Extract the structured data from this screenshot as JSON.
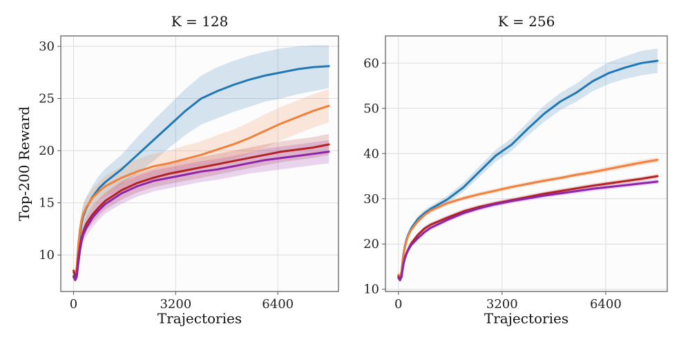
{
  "chart_data": [
    {
      "type": "line",
      "title": "K = 128",
      "xlabel": "Trajectories",
      "ylabel": "Top-200 Reward",
      "xlim": [
        -400,
        8300
      ],
      "ylim": [
        6.5,
        31
      ],
      "xticks": [
        0,
        3200,
        6400
      ],
      "xtick_labels": [
        "0",
        "3200",
        "6400"
      ],
      "yticks": [
        10,
        15,
        20,
        25,
        30
      ],
      "ytick_labels": [
        "10",
        "15",
        "20",
        "25",
        "30"
      ],
      "grid": true,
      "x": [
        0,
        50,
        100,
        150,
        200,
        250,
        300,
        400,
        600,
        800,
        1000,
        1500,
        2000,
        2500,
        3000,
        3500,
        4000,
        4500,
        5000,
        5500,
        6000,
        6500,
        7000,
        7500,
        8000
      ],
      "series": [
        {
          "name": "series-blue",
          "color": "#1f77b4",
          "values": [
            8.0,
            7.7,
            8.2,
            10.5,
            12.0,
            13.0,
            13.7,
            14.5,
            15.6,
            16.4,
            17.0,
            18.2,
            19.6,
            21.0,
            22.4,
            23.8,
            25.0,
            25.7,
            26.3,
            26.8,
            27.2,
            27.5,
            27.8,
            28.0,
            28.1
          ],
          "lower": [
            7.7,
            7.5,
            7.9,
            9.7,
            11.1,
            12.0,
            12.6,
            13.4,
            14.5,
            15.2,
            15.8,
            16.8,
            17.8,
            19.0,
            20.3,
            21.5,
            22.5,
            23.1,
            23.7,
            24.2,
            24.7,
            25.0,
            25.4,
            25.7,
            26.0
          ],
          "upper": [
            8.3,
            8.0,
            8.6,
            11.3,
            12.9,
            14.0,
            14.8,
            15.6,
            16.7,
            17.6,
            18.3,
            19.6,
            21.3,
            22.9,
            24.4,
            25.9,
            27.2,
            28.0,
            28.6,
            29.1,
            29.5,
            29.8,
            30.0,
            30.1,
            30.1
          ]
        },
        {
          "name": "series-orange",
          "color": "#f0803c",
          "values": [
            8.3,
            8.1,
            8.8,
            11.0,
            12.4,
            13.3,
            13.9,
            14.6,
            15.5,
            16.1,
            16.6,
            17.4,
            18.0,
            18.5,
            18.8,
            19.2,
            19.6,
            20.1,
            20.6,
            21.2,
            21.9,
            22.6,
            23.2,
            23.8,
            24.3
          ],
          "lower": [
            8.0,
            7.8,
            8.4,
            10.3,
            11.6,
            12.4,
            13.0,
            13.7,
            14.6,
            15.2,
            15.6,
            16.3,
            16.8,
            17.3,
            17.6,
            17.9,
            18.3,
            18.7,
            19.2,
            19.7,
            20.3,
            21.0,
            21.6,
            22.2,
            22.7
          ],
          "upper": [
            8.6,
            8.4,
            9.2,
            11.7,
            13.2,
            14.2,
            14.8,
            15.5,
            16.4,
            17.0,
            17.6,
            18.5,
            19.2,
            19.7,
            20.0,
            20.5,
            20.9,
            21.5,
            22.0,
            22.7,
            23.5,
            24.2,
            24.8,
            25.4,
            25.9
          ]
        },
        {
          "name": "series-red",
          "color": "#b22222",
          "values": [
            8.5,
            8.0,
            8.2,
            9.8,
            10.8,
            11.6,
            12.2,
            13.0,
            13.9,
            14.6,
            15.2,
            16.2,
            16.9,
            17.4,
            17.8,
            18.1,
            18.4,
            18.7,
            19.0,
            19.3,
            19.6,
            19.9,
            20.1,
            20.3,
            20.6
          ],
          "lower": [
            8.2,
            7.7,
            7.9,
            9.3,
            10.2,
            10.9,
            11.5,
            12.3,
            13.1,
            13.8,
            14.4,
            15.3,
            16.0,
            16.5,
            16.8,
            17.1,
            17.4,
            17.7,
            18.0,
            18.3,
            18.6,
            18.9,
            19.1,
            19.3,
            19.6
          ],
          "upper": [
            8.8,
            8.3,
            8.5,
            10.3,
            11.4,
            12.3,
            12.9,
            13.7,
            14.7,
            15.4,
            16.0,
            17.1,
            17.8,
            18.3,
            18.8,
            19.1,
            19.4,
            19.7,
            20.0,
            20.3,
            20.6,
            20.9,
            21.1,
            21.3,
            21.6
          ]
        },
        {
          "name": "series-purple",
          "color": "#8e24aa",
          "values": [
            7.9,
            7.6,
            7.9,
            9.2,
            10.4,
            11.3,
            11.9,
            12.6,
            13.6,
            14.3,
            14.9,
            15.9,
            16.6,
            17.1,
            17.4,
            17.7,
            18.0,
            18.2,
            18.5,
            18.8,
            19.1,
            19.3,
            19.5,
            19.7,
            19.9
          ],
          "lower": [
            7.6,
            7.4,
            7.6,
            8.7,
            9.8,
            10.6,
            11.2,
            11.8,
            12.7,
            13.4,
            14.0,
            14.9,
            15.6,
            16.1,
            16.4,
            16.7,
            17.0,
            17.2,
            17.5,
            17.8,
            18.0,
            18.2,
            18.4,
            18.6,
            18.8
          ],
          "upper": [
            8.2,
            7.8,
            8.2,
            9.7,
            11.0,
            12.0,
            12.6,
            13.4,
            14.5,
            15.2,
            15.8,
            16.9,
            17.6,
            18.1,
            18.4,
            18.7,
            19.0,
            19.2,
            19.5,
            19.8,
            20.2,
            20.4,
            20.6,
            20.8,
            21.0
          ]
        }
      ]
    },
    {
      "type": "line",
      "title": "K = 256",
      "xlabel": "Trajectories",
      "ylabel": "",
      "xlim": [
        -400,
        8300
      ],
      "ylim": [
        9.5,
        66
      ],
      "xticks": [
        0,
        3200,
        6400
      ],
      "xtick_labels": [
        "0",
        "3200",
        "6400"
      ],
      "yticks": [
        10,
        20,
        30,
        40,
        50,
        60
      ],
      "ytick_labels": [
        "10",
        "20",
        "30",
        "40",
        "50",
        "60"
      ],
      "grid": true,
      "x": [
        0,
        50,
        100,
        150,
        200,
        250,
        300,
        400,
        600,
        800,
        1000,
        1500,
        2000,
        2500,
        3000,
        3500,
        4000,
        4500,
        5000,
        5500,
        6000,
        6500,
        7000,
        7500,
        8000
      ],
      "series": [
        {
          "name": "series-blue",
          "color": "#1f77b4",
          "values": [
            13.0,
            12.6,
            14.0,
            17.5,
            19.5,
            21.0,
            22.0,
            23.5,
            25.5,
            26.8,
            27.8,
            29.8,
            32.5,
            36.0,
            39.5,
            42.0,
            45.5,
            48.8,
            51.5,
            53.5,
            56.0,
            57.8,
            59.0,
            60.0,
            60.5
          ],
          "lower": [
            12.6,
            12.2,
            13.6,
            17.0,
            19.0,
            20.4,
            21.4,
            22.9,
            24.8,
            26.1,
            27.1,
            29.0,
            31.5,
            34.8,
            38.2,
            40.6,
            44.0,
            47.0,
            49.6,
            51.5,
            53.8,
            55.4,
            56.5,
            57.3,
            57.8
          ],
          "upper": [
            13.4,
            13.0,
            14.4,
            18.0,
            20.0,
            21.6,
            22.6,
            24.1,
            26.2,
            27.5,
            28.5,
            30.6,
            33.5,
            37.2,
            40.8,
            43.4,
            47.0,
            50.6,
            53.4,
            55.5,
            58.2,
            60.2,
            61.5,
            62.7,
            63.2
          ]
        },
        {
          "name": "series-orange",
          "color": "#f0803c",
          "values": [
            13.2,
            12.4,
            14.0,
            17.2,
            19.2,
            20.7,
            21.8,
            23.2,
            25.0,
            26.4,
            27.4,
            29.0,
            30.1,
            31.0,
            31.8,
            32.6,
            33.3,
            34.0,
            34.6,
            35.3,
            35.9,
            36.6,
            37.3,
            38.0,
            38.6
          ],
          "lower": [
            12.8,
            12.0,
            13.6,
            16.8,
            18.8,
            20.2,
            21.3,
            22.7,
            24.5,
            25.9,
            26.9,
            28.5,
            29.6,
            30.5,
            31.3,
            32.1,
            32.8,
            33.5,
            34.1,
            34.8,
            35.4,
            36.0,
            36.7,
            37.4,
            38.0
          ],
          "upper": [
            13.6,
            12.8,
            14.4,
            17.6,
            19.6,
            21.2,
            22.3,
            23.7,
            25.5,
            26.9,
            27.9,
            29.5,
            30.6,
            31.5,
            32.3,
            33.1,
            33.8,
            34.5,
            35.1,
            35.8,
            36.4,
            37.2,
            37.9,
            38.6,
            39.2
          ]
        },
        {
          "name": "series-red",
          "color": "#b22222",
          "values": [
            12.8,
            12.2,
            13.0,
            15.5,
            17.0,
            18.0,
            18.8,
            20.2,
            22.0,
            23.4,
            24.3,
            25.8,
            27.2,
            28.2,
            29.0,
            29.7,
            30.4,
            31.1,
            31.7,
            32.3,
            32.9,
            33.4,
            33.9,
            34.4,
            35.0
          ],
          "lower": [
            12.4,
            11.8,
            12.6,
            15.1,
            16.5,
            17.5,
            18.3,
            19.7,
            21.5,
            22.9,
            23.8,
            25.3,
            26.7,
            27.7,
            28.5,
            29.2,
            29.9,
            30.6,
            31.2,
            31.8,
            32.4,
            32.9,
            33.4,
            33.9,
            34.5
          ],
          "upper": [
            13.2,
            12.6,
            13.4,
            15.9,
            17.5,
            18.5,
            19.3,
            20.7,
            22.5,
            23.9,
            24.8,
            26.3,
            27.7,
            28.7,
            29.5,
            30.2,
            30.9,
            31.6,
            32.2,
            32.8,
            33.4,
            33.9,
            34.4,
            34.9,
            35.5
          ]
        },
        {
          "name": "series-purple",
          "color": "#8e24aa",
          "values": [
            12.5,
            12.0,
            12.8,
            15.3,
            16.8,
            17.8,
            18.6,
            19.8,
            21.3,
            22.6,
            23.6,
            25.3,
            26.8,
            27.9,
            28.8,
            29.5,
            30.1,
            30.7,
            31.2,
            31.7,
            32.2,
            32.6,
            33.0,
            33.4,
            33.8
          ],
          "lower": [
            12.1,
            11.6,
            12.4,
            14.9,
            16.3,
            17.3,
            18.1,
            19.3,
            20.8,
            22.1,
            23.1,
            24.8,
            26.3,
            27.4,
            28.3,
            29.0,
            29.6,
            30.2,
            30.7,
            31.2,
            31.7,
            32.1,
            32.5,
            32.9,
            33.3
          ],
          "upper": [
            12.9,
            12.4,
            13.2,
            15.7,
            17.3,
            18.3,
            19.1,
            20.3,
            21.8,
            23.1,
            24.1,
            25.8,
            27.3,
            28.4,
            29.3,
            30.0,
            30.6,
            31.2,
            31.7,
            32.2,
            32.7,
            33.1,
            33.5,
            33.9,
            34.3
          ]
        }
      ]
    }
  ]
}
